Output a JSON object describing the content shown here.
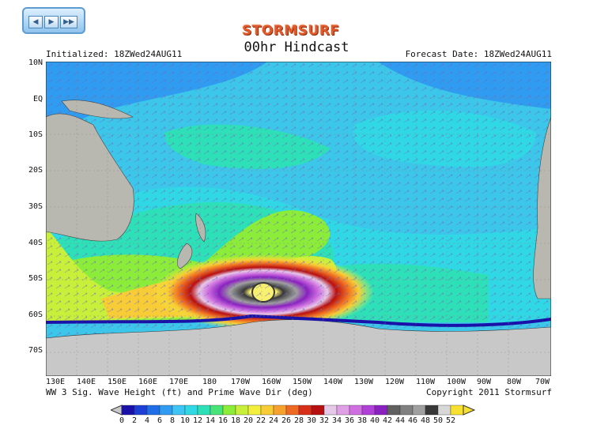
{
  "brand": "STORMSURF",
  "title": "00hr Hindcast",
  "initialized": "Initialized: 18ZWed24AUG11",
  "forecast_date": "Forecast Date: 18ZWed24AUG11",
  "footer_left": "WW 3 Sig. Wave Height (ft) and Prime Wave Dir (deg)",
  "footer_right": "Copyright 2011 Stormsurf",
  "nav_buttons": [
    "◀",
    "▶",
    "▶▶"
  ],
  "lat_labels": [
    "10N",
    "EQ",
    "10S",
    "20S",
    "30S",
    "40S",
    "50S",
    "60S",
    "70S"
  ],
  "lon_labels": [
    "130E",
    "140E",
    "150E",
    "160E",
    "170E",
    "180",
    "170W",
    "160W",
    "150W",
    "140W",
    "130W",
    "120W",
    "110W",
    "100W",
    "90W",
    "80W",
    "70W"
  ],
  "scale_labels": [
    "0",
    "2",
    "4",
    "6",
    "8",
    "10",
    "12",
    "14",
    "16",
    "18",
    "20",
    "22",
    "24",
    "26",
    "28",
    "30",
    "32",
    "34",
    "36",
    "38",
    "40",
    "42",
    "44",
    "46",
    "48",
    "50",
    "52"
  ],
  "scale_colors": [
    "#1a12a8",
    "#1e3fd6",
    "#1f6ee8",
    "#2f9cf2",
    "#3fc4f6",
    "#30d8e6",
    "#2ee0b8",
    "#48e47a",
    "#8cec3a",
    "#c8f03a",
    "#f2f03c",
    "#f8cc36",
    "#f6a02e",
    "#ee6a22",
    "#d83018",
    "#b81010",
    "#e6c8e8",
    "#e0a0e6",
    "#d070e0",
    "#b040d8",
    "#8a20c0",
    "#606060",
    "#808080",
    "#a0a0a0",
    "#383838",
    "#d8d8d8",
    "#f8e030"
  ],
  "colors": {
    "ocean_base": "#3bc6ea",
    "land": "#b8b8b0",
    "ice": "#c8c8c8",
    "storm_core": "#f8f070"
  }
}
